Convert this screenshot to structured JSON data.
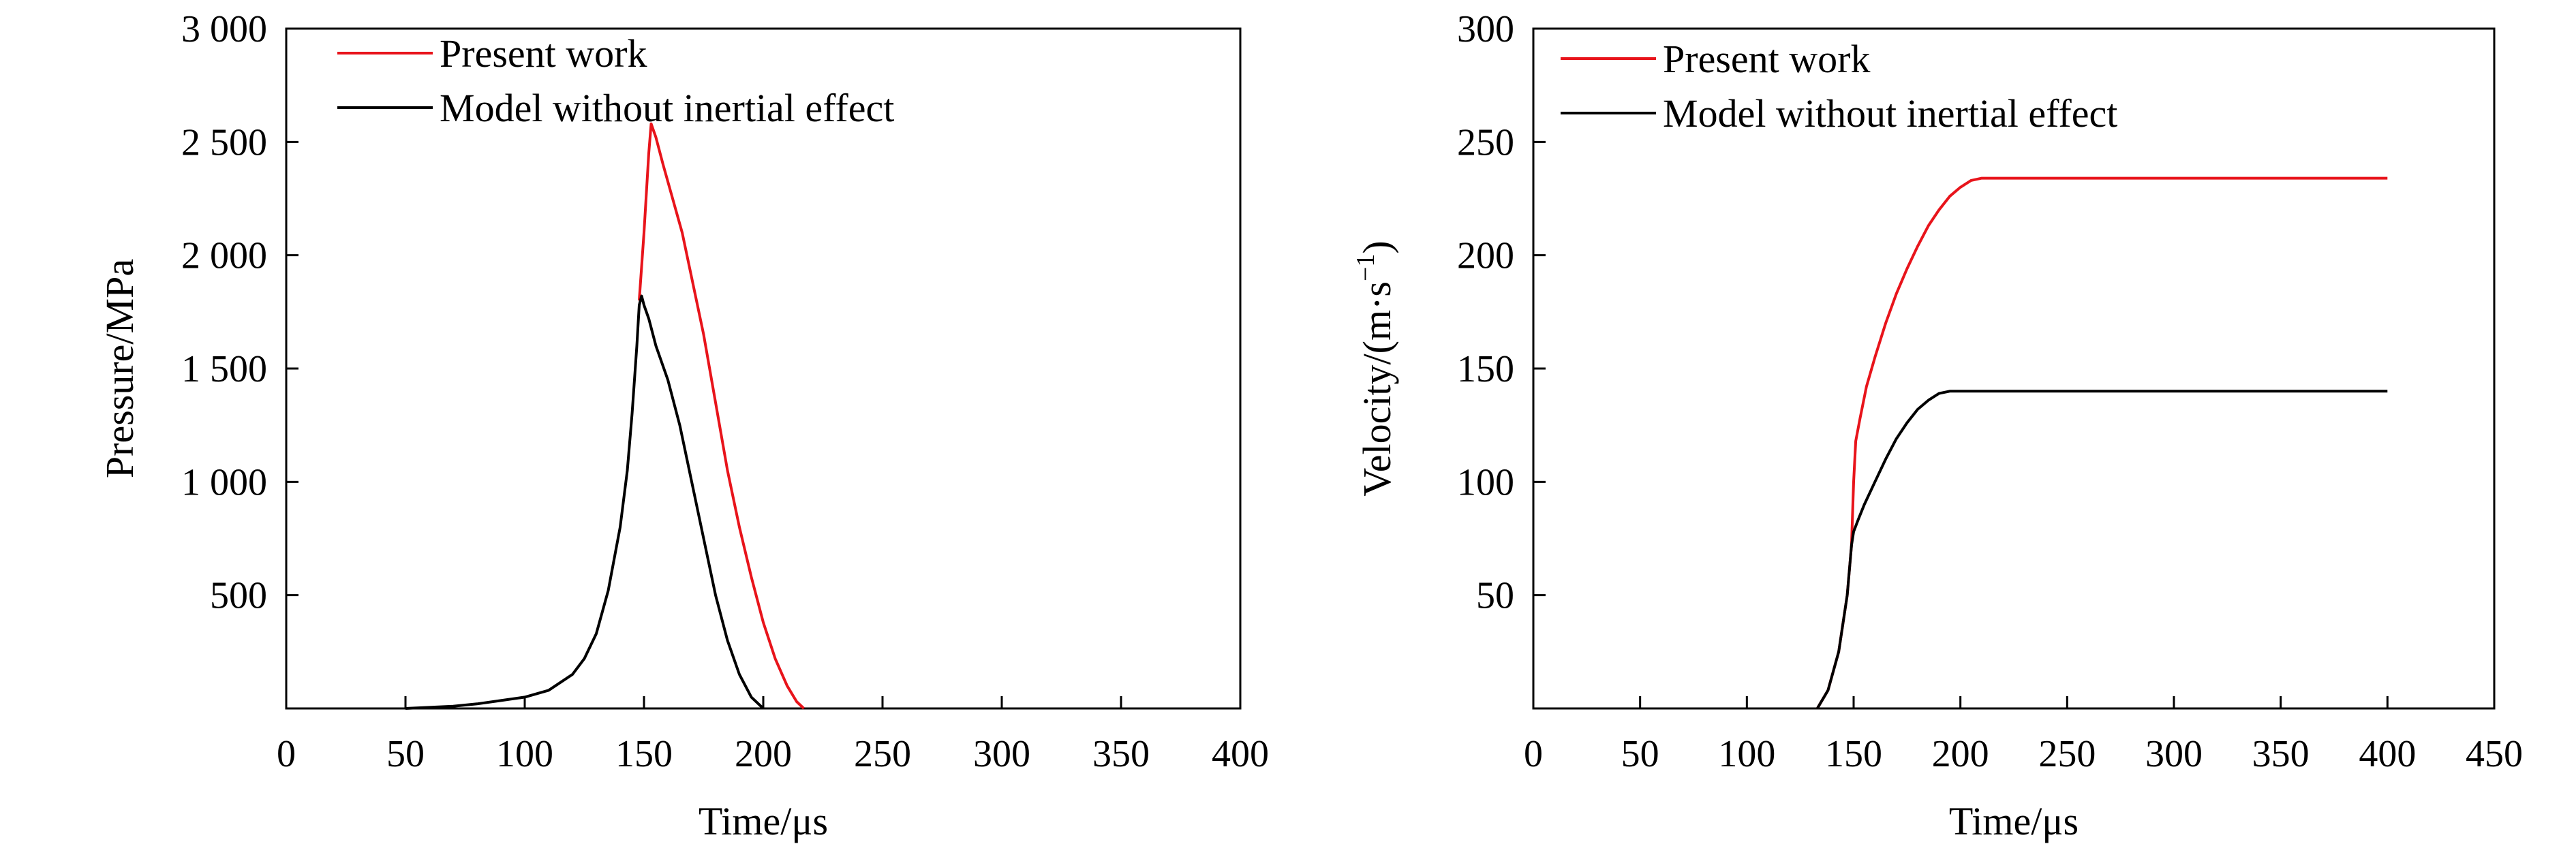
{
  "colors": {
    "present": "#e8141b",
    "inertia_free": "#000000",
    "axes": "#000000"
  },
  "chart_data": [
    {
      "type": "line",
      "xlabel": "Time/μs",
      "ylabel": "Pressure/MPa",
      "xlim": [
        0,
        400
      ],
      "ylim": [
        0,
        3000
      ],
      "xticks": [
        0,
        50,
        100,
        150,
        200,
        250,
        300,
        350,
        400
      ],
      "xtick_labels": [
        "0",
        "50",
        "100",
        "150",
        "200",
        "250",
        "300",
        "350",
        "400"
      ],
      "yticks": [
        500,
        1000,
        1500,
        2000,
        2500,
        3000
      ],
      "ytick_labels": [
        "500",
        "1 000",
        "1 500",
        "2 000",
        "2 500",
        "3 000"
      ],
      "grid": false,
      "legend_position": "top-left",
      "series": [
        {
          "name": "Present work",
          "color": "#e8141b",
          "x": [
            148,
            150,
            152,
            153,
            155,
            158,
            162,
            166,
            170,
            175,
            180,
            185,
            190,
            195,
            200,
            205,
            210,
            214,
            217
          ],
          "y": [
            1800,
            2100,
            2450,
            2580,
            2520,
            2400,
            2250,
            2100,
            1900,
            1650,
            1350,
            1050,
            800,
            580,
            380,
            220,
            100,
            30,
            0
          ]
        },
        {
          "name": "Model without inertial effect",
          "color": "#000000",
          "x": [
            50,
            70,
            80,
            90,
            100,
            110,
            120,
            125,
            130,
            135,
            140,
            143,
            145,
            147,
            148,
            149,
            150,
            152,
            155,
            160,
            165,
            170,
            175,
            180,
            185,
            190,
            195,
            200
          ],
          "y": [
            0,
            10,
            20,
            35,
            50,
            80,
            150,
            220,
            330,
            520,
            800,
            1050,
            1300,
            1600,
            1780,
            1820,
            1780,
            1720,
            1600,
            1450,
            1250,
            1000,
            750,
            500,
            300,
            150,
            50,
            0
          ]
        }
      ]
    },
    {
      "type": "line",
      "xlabel": "Time/μs",
      "ylabel": "Velocity/(m·s",
      "ylabel_sup": "−1",
      "ylabel_end": ")",
      "xlim": [
        0,
        450
      ],
      "ylim": [
        0,
        300
      ],
      "xticks": [
        0,
        50,
        100,
        150,
        200,
        250,
        300,
        350,
        400,
        450
      ],
      "xtick_labels": [
        "0",
        "50",
        "100",
        "150",
        "200",
        "250",
        "300",
        "350",
        "400",
        "450"
      ],
      "yticks": [
        50,
        100,
        150,
        200,
        250,
        300
      ],
      "ytick_labels": [
        "50",
        "100",
        "150",
        "200",
        "250",
        "300"
      ],
      "grid": false,
      "legend_position": "top-left",
      "series": [
        {
          "name": "Present work",
          "color": "#e8141b",
          "x": [
            133,
            138,
            143,
            147,
            149,
            150,
            151,
            153,
            156,
            160,
            165,
            170,
            175,
            180,
            185,
            190,
            195,
            200,
            205,
            210,
            215,
            220,
            300,
            400
          ],
          "y": [
            0,
            8,
            25,
            50,
            72,
            100,
            118,
            128,
            142,
            155,
            170,
            183,
            194,
            204,
            213,
            220,
            226,
            230,
            233,
            234,
            234,
            234,
            234,
            234
          ]
        },
        {
          "name": "Model without inertial effect",
          "color": "#000000",
          "x": [
            133,
            138,
            143,
            147,
            149,
            150,
            152,
            155,
            160,
            165,
            170,
            175,
            180,
            185,
            190,
            195,
            200,
            300,
            400
          ],
          "y": [
            0,
            8,
            25,
            50,
            72,
            78,
            83,
            90,
            100,
            110,
            119,
            126,
            132,
            136,
            139,
            140,
            140,
            140,
            140
          ]
        }
      ]
    }
  ]
}
